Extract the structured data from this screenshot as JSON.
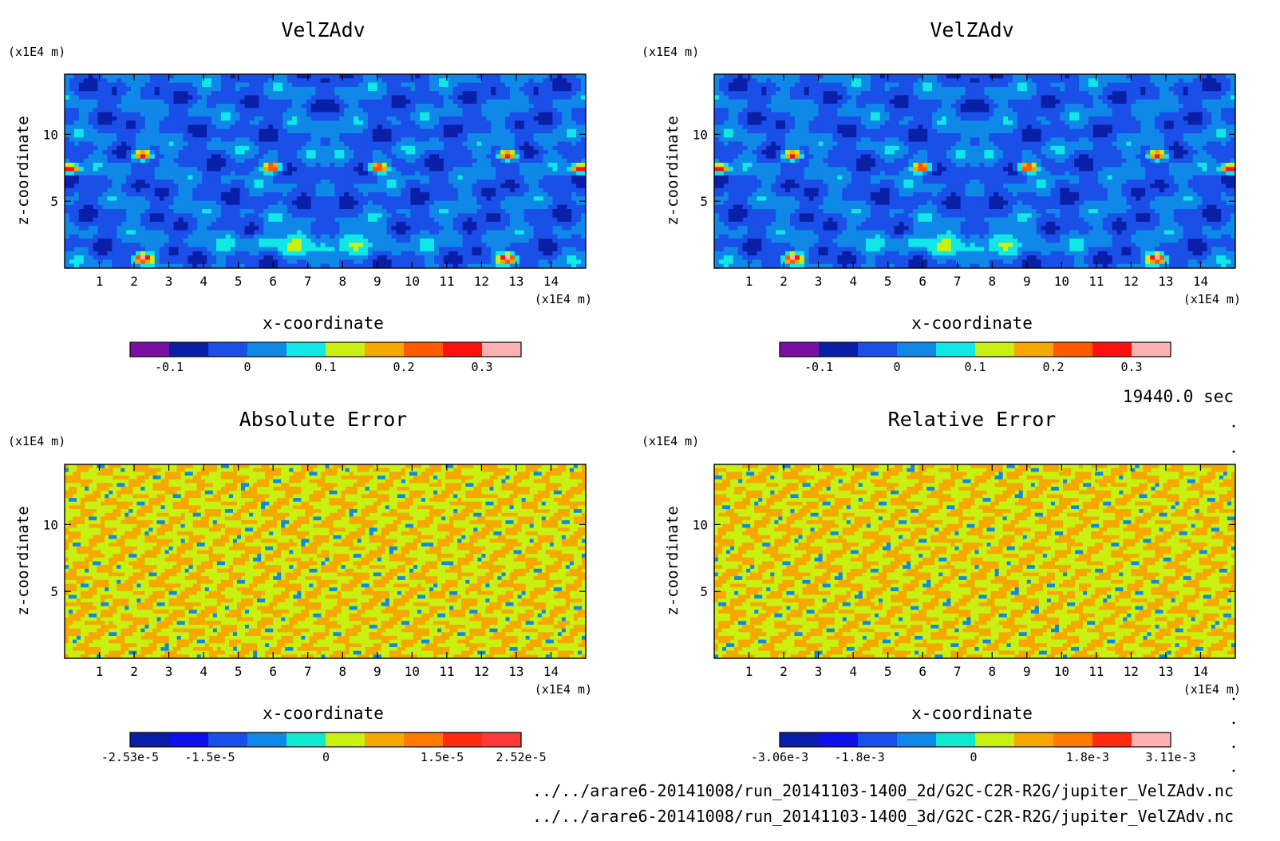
{
  "chart_data": [
    {
      "type": "heatmap",
      "title": "VelZAdv",
      "xlabel": "x-coordinate",
      "ylabel": "z-coordinate",
      "x_unit": "(x1E4 m)",
      "y_unit": "(x1E4 m)",
      "xlim": [
        0,
        15
      ],
      "ylim": [
        0,
        14.5
      ],
      "x_ticks": [
        "1",
        "2",
        "3",
        "4",
        "5",
        "6",
        "7",
        "8",
        "9",
        "10",
        "11",
        "12",
        "13",
        "14"
      ],
      "y_ticks": [
        "5",
        "10"
      ],
      "colorbar": {
        "labels": [
          "-0.1",
          "0",
          "0.1",
          "0.2",
          "0.3"
        ],
        "range": [
          -0.15,
          0.35
        ],
        "colors": [
          "#7a0fa6",
          "#0a1fa8",
          "#1a4fe8",
          "#0f88e8",
          "#10e8e8",
          "#c8f010",
          "#f5a800",
          "#ff5a00",
          "#ff1010",
          "#ffb0b0"
        ]
      },
      "pattern": "field"
    },
    {
      "type": "heatmap",
      "title": "VelZAdv",
      "xlabel": "x-coordinate",
      "ylabel": "z-coordinate",
      "x_unit": "(x1E4 m)",
      "y_unit": "(x1E4 m)",
      "xlim": [
        0,
        15
      ],
      "ylim": [
        0,
        14.5
      ],
      "x_ticks": [
        "1",
        "2",
        "3",
        "4",
        "5",
        "6",
        "7",
        "8",
        "9",
        "10",
        "11",
        "12",
        "13",
        "14"
      ],
      "y_ticks": [
        "5",
        "10"
      ],
      "colorbar": {
        "labels": [
          "-0.1",
          "0",
          "0.1",
          "0.2",
          "0.3"
        ],
        "range": [
          -0.15,
          0.35
        ],
        "colors": [
          "#7a0fa6",
          "#0a1fa8",
          "#1a4fe8",
          "#0f88e8",
          "#10e8e8",
          "#c8f010",
          "#f5a800",
          "#ff5a00",
          "#ff1010",
          "#ffb0b0"
        ]
      },
      "pattern": "field"
    },
    {
      "type": "heatmap",
      "title": "Absolute Error",
      "xlabel": "x-coordinate",
      "ylabel": "z-coordinate",
      "x_unit": "(x1E4 m)",
      "y_unit": "(x1E4 m)",
      "xlim": [
        0,
        15
      ],
      "ylim": [
        0,
        14.5
      ],
      "x_ticks": [
        "1",
        "2",
        "3",
        "4",
        "5",
        "6",
        "7",
        "8",
        "9",
        "10",
        "11",
        "12",
        "13",
        "14"
      ],
      "y_ticks": [
        "5",
        "10"
      ],
      "colorbar": {
        "labels": [
          "-2.53e-5",
          "-1.5e-5",
          "0",
          "1.5e-5",
          "2.52e-5"
        ],
        "range": [
          -2.53e-05,
          2.52e-05
        ],
        "colors": [
          "#0a1fa8",
          "#1010e8",
          "#1a4fe8",
          "#0f88e8",
          "#10e8d0",
          "#c8f010",
          "#f5a800",
          "#ff7a00",
          "#ff2a10",
          "#ff3a3a"
        ]
      },
      "pattern": "error"
    },
    {
      "type": "heatmap",
      "title": "Relative Error",
      "xlabel": "x-coordinate",
      "ylabel": "z-coordinate",
      "x_unit": "(x1E4 m)",
      "y_unit": "(x1E4 m)",
      "xlim": [
        0,
        15
      ],
      "ylim": [
        0,
        14.5
      ],
      "x_ticks": [
        "1",
        "2",
        "3",
        "4",
        "5",
        "6",
        "7",
        "8",
        "9",
        "10",
        "11",
        "12",
        "13",
        "14"
      ],
      "y_ticks": [
        "5",
        "10"
      ],
      "colorbar": {
        "labels": [
          "-3.06e-3",
          "-1.8e-3",
          "0",
          "1.8e-3",
          "3.11e-3"
        ],
        "range": [
          -0.00306,
          0.00311
        ],
        "colors": [
          "#0a1fa8",
          "#1010e8",
          "#1a4fe8",
          "#0f88e8",
          "#10e8d0",
          "#c8f010",
          "#f5a800",
          "#ff7a00",
          "#ff2a10",
          "#ffb0b0"
        ]
      },
      "pattern": "error"
    }
  ],
  "time_label": "19440.0 sec",
  "file_paths": [
    "../../arare6-20141008/run_20141103-1400_2d/G2C-C2R-R2G/jupiter_VelZAdv.nc",
    "../../arare6-20141008/run_20141103-1400_3d/G2C-C2R-R2G/jupiter_VelZAdv.nc"
  ]
}
